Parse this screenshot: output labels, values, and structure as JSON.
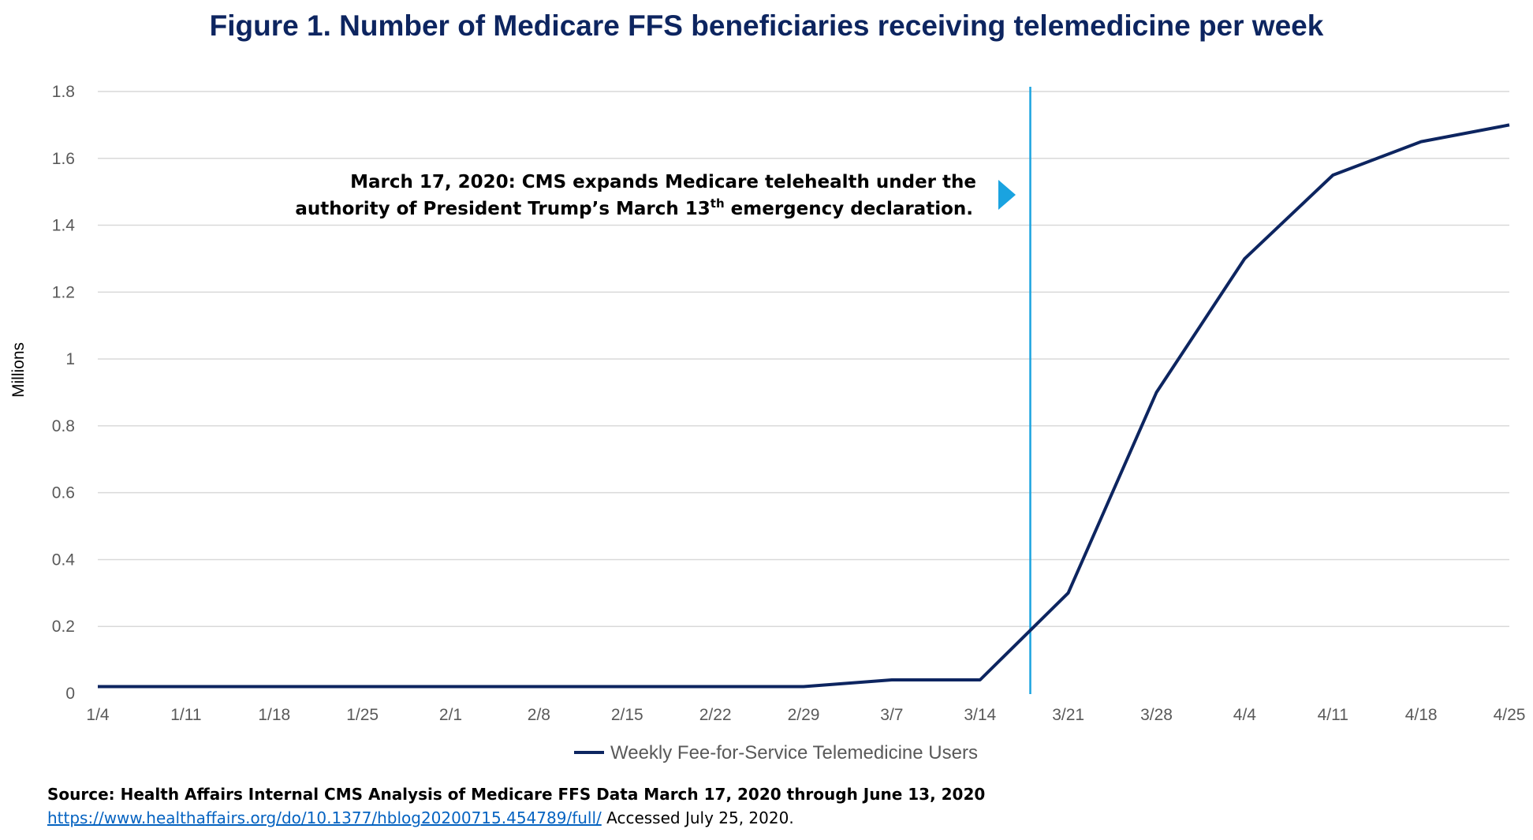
{
  "title": "Figure 1. Number of Medicare FFS beneficiaries receiving telemedicine per week",
  "chart_data": {
    "type": "line",
    "title": "Figure 1. Number of Medicare FFS beneficiaries receiving telemedicine per week",
    "xlabel": "",
    "ylabel": "Millions",
    "ylim": [
      0,
      1.8
    ],
    "yticks": [
      "0",
      "0.2",
      "0.4",
      "0.6",
      "0.8",
      "1",
      "1.2",
      "1.4",
      "1.6",
      "1.8"
    ],
    "categories": [
      "1/4",
      "1/11",
      "1/18",
      "1/25",
      "2/1",
      "2/8",
      "2/15",
      "2/22",
      "2/29",
      "3/7",
      "3/14",
      "3/21",
      "3/28",
      "4/4",
      "4/11",
      "4/18",
      "4/25"
    ],
    "series": [
      {
        "name": "Weekly Fee-for-Service Telemedicine Users",
        "color": "#0d2560",
        "values": [
          0.02,
          0.02,
          0.02,
          0.02,
          0.02,
          0.02,
          0.02,
          0.02,
          0.02,
          0.04,
          0.04,
          0.3,
          0.9,
          1.3,
          1.55,
          1.65,
          1.7
        ]
      }
    ],
    "grid": true,
    "legend": "bottom",
    "vline": {
      "between": [
        "3/14",
        "3/21"
      ],
      "fraction": 0.57,
      "color": "#1aa3e0"
    },
    "annotation": {
      "line1": "March 17, 2020: CMS expands Medicare telehealth under the",
      "line2_pre": "authority of President Trump’s March 13",
      "line2_sup": "th",
      "line2_post": " emergency declaration.",
      "arrow_color": "#1aa3e0"
    }
  },
  "source": {
    "line1": "Source: Health Affairs Internal CMS Analysis of Medicare FFS Data March 17, 2020 through June 13, 2020",
    "link": "https://www.healthaffairs.org/do/10.1377/hblog20200715.454789/full/",
    "accessed": " Accessed July 25, 2020."
  }
}
